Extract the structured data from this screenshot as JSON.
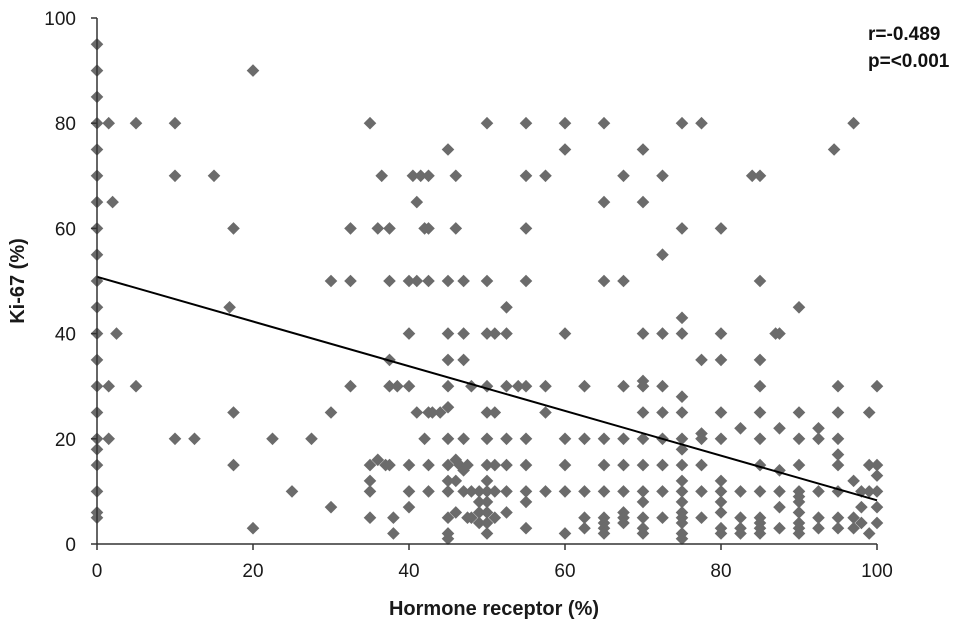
{
  "chart_data": {
    "type": "scatter",
    "title": "",
    "xlabel": "Hormone receptor  (%)",
    "ylabel": "Ki-67  (%)",
    "xlim": [
      0,
      100
    ],
    "ylim": [
      0,
      100
    ],
    "xticks": [
      0,
      20,
      40,
      60,
      80,
      100
    ],
    "yticks": [
      0,
      20,
      40,
      60,
      80,
      100
    ],
    "grid": false,
    "marker": "diamond",
    "colors": {
      "marker": "#6b6b6b",
      "trendline": "#000000",
      "axis": "#333333"
    },
    "annotations": {
      "r": "r=-0.489",
      "p": "p=<0.001"
    },
    "trendline": {
      "x": [
        0,
        100
      ],
      "y": [
        50.8,
        8.3
      ]
    },
    "series": [
      {
        "points": [
          [
            0,
            95
          ],
          [
            0,
            90
          ],
          [
            0,
            85
          ],
          [
            0,
            80
          ],
          [
            0,
            75
          ],
          [
            0,
            70
          ],
          [
            0,
            65
          ],
          [
            0,
            60
          ],
          [
            0,
            55
          ],
          [
            0,
            50
          ],
          [
            0,
            45
          ],
          [
            0,
            40
          ],
          [
            0,
            35
          ],
          [
            0,
            30
          ],
          [
            0,
            25
          ],
          [
            0,
            20
          ],
          [
            0,
            18
          ],
          [
            0,
            15
          ],
          [
            0,
            10
          ],
          [
            0,
            6
          ],
          [
            0,
            5
          ],
          [
            1.5,
            80
          ],
          [
            2,
            65
          ],
          [
            2.5,
            40
          ],
          [
            1.5,
            30
          ],
          [
            1.5,
            20
          ],
          [
            5,
            80
          ],
          [
            5,
            30
          ],
          [
            10,
            80
          ],
          [
            10,
            70
          ],
          [
            10,
            20
          ],
          [
            12.5,
            20
          ],
          [
            15,
            70
          ],
          [
            17,
            45
          ],
          [
            17.5,
            60
          ],
          [
            17.5,
            25
          ],
          [
            17.5,
            15
          ],
          [
            20,
            90
          ],
          [
            20,
            3
          ],
          [
            22.5,
            20
          ],
          [
            25,
            10
          ],
          [
            27.5,
            20
          ],
          [
            30,
            50
          ],
          [
            30,
            25
          ],
          [
            30,
            7
          ],
          [
            32.5,
            60
          ],
          [
            32.5,
            50
          ],
          [
            32.5,
            30
          ],
          [
            35,
            80
          ],
          [
            35,
            15
          ],
          [
            35,
            12
          ],
          [
            35,
            10
          ],
          [
            35,
            5
          ],
          [
            36,
            60
          ],
          [
            36,
            16
          ],
          [
            36.5,
            70
          ],
          [
            37,
            15
          ],
          [
            37.5,
            60
          ],
          [
            37.5,
            50
          ],
          [
            37.5,
            35
          ],
          [
            37.5,
            30
          ],
          [
            37.5,
            15
          ],
          [
            38,
            5
          ],
          [
            38,
            2
          ],
          [
            38.5,
            30
          ],
          [
            40,
            50
          ],
          [
            40,
            40
          ],
          [
            40,
            30
          ],
          [
            40,
            15
          ],
          [
            40,
            10
          ],
          [
            40,
            7
          ],
          [
            40.5,
            70
          ],
          [
            41,
            65
          ],
          [
            41,
            50
          ],
          [
            41,
            25
          ],
          [
            41.5,
            70
          ],
          [
            42,
            60
          ],
          [
            42,
            20
          ],
          [
            42.5,
            70
          ],
          [
            42.5,
            60
          ],
          [
            42.5,
            50
          ],
          [
            42.5,
            25
          ],
          [
            42.5,
            15
          ],
          [
            42.5,
            10
          ],
          [
            43,
            25
          ],
          [
            44,
            25
          ],
          [
            45,
            75
          ],
          [
            45,
            50
          ],
          [
            45,
            40
          ],
          [
            45,
            35
          ],
          [
            45,
            30
          ],
          [
            45,
            26
          ],
          [
            45,
            20
          ],
          [
            45,
            15
          ],
          [
            45,
            12
          ],
          [
            45,
            10
          ],
          [
            45,
            5
          ],
          [
            45,
            2
          ],
          [
            45,
            1
          ],
          [
            46,
            70
          ],
          [
            46,
            60
          ],
          [
            46,
            16
          ],
          [
            46,
            12
          ],
          [
            46,
            6
          ],
          [
            46.5,
            15
          ],
          [
            47,
            50
          ],
          [
            47,
            40
          ],
          [
            47,
            35
          ],
          [
            47,
            20
          ],
          [
            47,
            14
          ],
          [
            47,
            10
          ],
          [
            47.5,
            15
          ],
          [
            47.5,
            5
          ],
          [
            48,
            30
          ],
          [
            48,
            10
          ],
          [
            48,
            5
          ],
          [
            49,
            10
          ],
          [
            49,
            8
          ],
          [
            49,
            6
          ],
          [
            49,
            4
          ],
          [
            50,
            80
          ],
          [
            50,
            50
          ],
          [
            50,
            40
          ],
          [
            50,
            30
          ],
          [
            50,
            25
          ],
          [
            50,
            20
          ],
          [
            50,
            15
          ],
          [
            50,
            12
          ],
          [
            50,
            10
          ],
          [
            50,
            8
          ],
          [
            50,
            6
          ],
          [
            50,
            4
          ],
          [
            50,
            2
          ],
          [
            51,
            40
          ],
          [
            51,
            25
          ],
          [
            51,
            15
          ],
          [
            51,
            10
          ],
          [
            51,
            5
          ],
          [
            52.5,
            45
          ],
          [
            52.5,
            40
          ],
          [
            52.5,
            30
          ],
          [
            52.5,
            20
          ],
          [
            52.5,
            15
          ],
          [
            52.5,
            10
          ],
          [
            52.5,
            6
          ],
          [
            54,
            30
          ],
          [
            55,
            80
          ],
          [
            55,
            70
          ],
          [
            55,
            60
          ],
          [
            55,
            50
          ],
          [
            55,
            30
          ],
          [
            55,
            20
          ],
          [
            55,
            15
          ],
          [
            55,
            10
          ],
          [
            55,
            8
          ],
          [
            55,
            3
          ],
          [
            57.5,
            70
          ],
          [
            57.5,
            30
          ],
          [
            57.5,
            25
          ],
          [
            57.5,
            10
          ],
          [
            60,
            80
          ],
          [
            60,
            75
          ],
          [
            60,
            40
          ],
          [
            60,
            20
          ],
          [
            60,
            15
          ],
          [
            60,
            10
          ],
          [
            60,
            2
          ],
          [
            62.5,
            30
          ],
          [
            62.5,
            20
          ],
          [
            62.5,
            10
          ],
          [
            62.5,
            5
          ],
          [
            62.5,
            3
          ],
          [
            65,
            80
          ],
          [
            65,
            65
          ],
          [
            65,
            50
          ],
          [
            65,
            20
          ],
          [
            65,
            15
          ],
          [
            65,
            10
          ],
          [
            65,
            5
          ],
          [
            65,
            4
          ],
          [
            65,
            3
          ],
          [
            65,
            2
          ],
          [
            67.5,
            70
          ],
          [
            67.5,
            50
          ],
          [
            67.5,
            30
          ],
          [
            67.5,
            20
          ],
          [
            67.5,
            15
          ],
          [
            67.5,
            10
          ],
          [
            67.5,
            6
          ],
          [
            67.5,
            5
          ],
          [
            67.5,
            4
          ],
          [
            70,
            75
          ],
          [
            70,
            65
          ],
          [
            70,
            40
          ],
          [
            70,
            31
          ],
          [
            70,
            30
          ],
          [
            70,
            25
          ],
          [
            70,
            20
          ],
          [
            70,
            15
          ],
          [
            70,
            10
          ],
          [
            70,
            8
          ],
          [
            70,
            5
          ],
          [
            70,
            3
          ],
          [
            70,
            2
          ],
          [
            72.5,
            70
          ],
          [
            72.5,
            55
          ],
          [
            72.5,
            40
          ],
          [
            72.5,
            30
          ],
          [
            72.5,
            25
          ],
          [
            72.5,
            20
          ],
          [
            72.5,
            15
          ],
          [
            72.5,
            10
          ],
          [
            72.5,
            5
          ],
          [
            75,
            80
          ],
          [
            75,
            60
          ],
          [
            75,
            43
          ],
          [
            75,
            40
          ],
          [
            75,
            28
          ],
          [
            75,
            25
          ],
          [
            75,
            20
          ],
          [
            75,
            18
          ],
          [
            75,
            15
          ],
          [
            75,
            12
          ],
          [
            75,
            10
          ],
          [
            75,
            8
          ],
          [
            75,
            6
          ],
          [
            75,
            5
          ],
          [
            75,
            4
          ],
          [
            75,
            2
          ],
          [
            75,
            1
          ],
          [
            77.5,
            80
          ],
          [
            77.5,
            35
          ],
          [
            77.5,
            21
          ],
          [
            77.5,
            20
          ],
          [
            77.5,
            15
          ],
          [
            77.5,
            10
          ],
          [
            77.5,
            5
          ],
          [
            80,
            60
          ],
          [
            80,
            40
          ],
          [
            80,
            35
          ],
          [
            80,
            25
          ],
          [
            80,
            20
          ],
          [
            80,
            12
          ],
          [
            80,
            10
          ],
          [
            80,
            8
          ],
          [
            80,
            6
          ],
          [
            80,
            3
          ],
          [
            80,
            2
          ],
          [
            82.5,
            22
          ],
          [
            82.5,
            10
          ],
          [
            82.5,
            5
          ],
          [
            82.5,
            3
          ],
          [
            82.5,
            2
          ],
          [
            84,
            70
          ],
          [
            85,
            70
          ],
          [
            85,
            50
          ],
          [
            85,
            35
          ],
          [
            85,
            30
          ],
          [
            85,
            25
          ],
          [
            85,
            20
          ],
          [
            85,
            15
          ],
          [
            85,
            10
          ],
          [
            85,
            5
          ],
          [
            85,
            4
          ],
          [
            85,
            3
          ],
          [
            85,
            2
          ],
          [
            87,
            40
          ],
          [
            87.5,
            40
          ],
          [
            87.5,
            22
          ],
          [
            87.5,
            14
          ],
          [
            87.5,
            10
          ],
          [
            87.5,
            7
          ],
          [
            87.5,
            3
          ],
          [
            90,
            45
          ],
          [
            90,
            25
          ],
          [
            90,
            20
          ],
          [
            90,
            15
          ],
          [
            90,
            10
          ],
          [
            90,
            9
          ],
          [
            90,
            8
          ],
          [
            90,
            6
          ],
          [
            90,
            4
          ],
          [
            90,
            3
          ],
          [
            90,
            2
          ],
          [
            92.5,
            22
          ],
          [
            92.5,
            20
          ],
          [
            92.5,
            10
          ],
          [
            92.5,
            5
          ],
          [
            92.5,
            3
          ],
          [
            94.5,
            75
          ],
          [
            95,
            30
          ],
          [
            95,
            25
          ],
          [
            95,
            20
          ],
          [
            95,
            17
          ],
          [
            95,
            15
          ],
          [
            95,
            10
          ],
          [
            95,
            5
          ],
          [
            95,
            3
          ],
          [
            97,
            80
          ],
          [
            97,
            12
          ],
          [
            97,
            5
          ],
          [
            97,
            3
          ],
          [
            98,
            10
          ],
          [
            98,
            7
          ],
          [
            98,
            4
          ],
          [
            99,
            25
          ],
          [
            99,
            15
          ],
          [
            99,
            10
          ],
          [
            99,
            2
          ],
          [
            100,
            30
          ],
          [
            100,
            15
          ],
          [
            100,
            13
          ],
          [
            100,
            10
          ],
          [
            100,
            7
          ],
          [
            100,
            4
          ]
        ]
      }
    ]
  }
}
